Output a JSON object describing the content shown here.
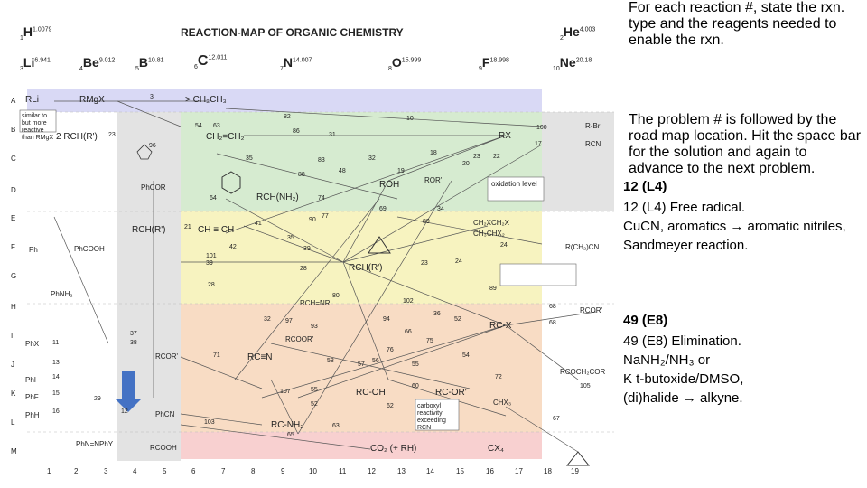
{
  "map": {
    "title": "REACTION-MAP OF ORGANIC CHEMISTRY",
    "elements": [
      {
        "num": "1",
        "sym": "H",
        "mass": "1.0079"
      },
      {
        "num": "2",
        "sym": "He",
        "mass": "4.003"
      },
      {
        "num": "3",
        "sym": "Li",
        "mass": "6.941"
      },
      {
        "num": "4",
        "sym": "Be",
        "mass": "9.012"
      },
      {
        "num": "5",
        "sym": "B",
        "mass": "10.81"
      },
      {
        "num": "6",
        "sym": "C",
        "mass": "12.011"
      },
      {
        "num": "7",
        "sym": "N",
        "mass": "14.007"
      },
      {
        "num": "8",
        "sym": "O",
        "mass": "15.999"
      },
      {
        "num": "9",
        "sym": "F",
        "mass": "18.998"
      },
      {
        "num": "10",
        "sym": "Ne",
        "mass": "20.18"
      }
    ],
    "row_letters": [
      "A",
      "B",
      "C",
      "D",
      "E",
      "F",
      "G",
      "H",
      "I",
      "J",
      "K",
      "L",
      "M"
    ],
    "col_numbers": [
      "1",
      "2",
      "3",
      "4",
      "5",
      "6",
      "7",
      "8",
      "9",
      "10",
      "11",
      "12",
      "13",
      "14",
      "15",
      "16",
      "17",
      "18",
      "19"
    ],
    "compounds": {
      "rli": "RLi",
      "rmgx": "RMgX",
      "ch3ch3": "> CH₃CH₃",
      "note_similar": "similar to but more reactive than RMgX",
      "ch2ch2": "CH₂=CH₂",
      "rx": "RX",
      "rbr": "R-Br",
      "rcn": "RCN",
      "rch_r": "2 RCH(R')",
      "roh": "ROH",
      "ror": "ROR'",
      "rchnh2": "RCH(NH₂)",
      "oxidation": "oxidation level",
      "chch": "CH ≡ CH",
      "rchoh": "RCH(R')",
      "ch2xch2x": "CH₂XCH₂X",
      "ch3chx2": "CH₃CHX₂",
      "rch2cn": "R(CH₂)CN",
      "rchnr": "RCH=NR",
      "rcoor": "RCOOR'",
      "rcocr": "RCOCR",
      "rcx": "RC-X",
      "rcor": "RCOR'",
      "rcn_triple": "RC≡N",
      "rcoh": "RC-OH",
      "rcor_ester": "RC-OR'",
      "rcnh2": "RC-NH₂",
      "rcooh": "RCOOH",
      "co2": "CO₂ (+ RH)",
      "cx4": "CX₄",
      "phcn": "PhCN",
      "phx": "PhX",
      "phi": "PhI",
      "phf": "PhF",
      "phh": "PhH",
      "ph_side": "Ph",
      "phcor": "PhCOR",
      "phcooh": "PhCOOH",
      "pnh2": "PhNH₂",
      "phnnphy": "PhN=NPhY",
      "chx3": "CHX₃",
      "rcooh2": "RCOCH₂COR",
      "carboxyl": "carboxyl reactivity exceeding RCN"
    },
    "arrow_numbers": [
      "1",
      "2",
      "3",
      "4",
      "5",
      "6",
      "7",
      "8",
      "9",
      "10",
      "11",
      "12",
      "13",
      "14",
      "15",
      "16",
      "17",
      "18",
      "19",
      "20",
      "21",
      "22",
      "23",
      "24",
      "25",
      "27",
      "28",
      "29",
      "30",
      "31",
      "32",
      "33",
      "34",
      "35",
      "36",
      "37",
      "38",
      "39",
      "40",
      "41",
      "42",
      "43",
      "44",
      "45",
      "46",
      "47",
      "48",
      "49",
      "50",
      "51",
      "52",
      "53",
      "54",
      "55",
      "56",
      "57",
      "58",
      "59",
      "60",
      "61",
      "62",
      "63",
      "64",
      "65",
      "66",
      "67",
      "68",
      "69",
      "70",
      "71",
      "72",
      "73",
      "74",
      "75",
      "76",
      "77",
      "78",
      "79",
      "80",
      "81",
      "82",
      "83",
      "84",
      "85",
      "86",
      "87",
      "88",
      "89",
      "90",
      "91",
      "92",
      "93",
      "94",
      "95",
      "96",
      "97",
      "98",
      "99",
      "100",
      "101",
      "102",
      "103",
      "104",
      "105",
      "106",
      "107",
      "108",
      "109"
    ]
  },
  "sidebar": {
    "title": "For each reaction #, state the rxn. type and the reagents needed to enable the rxn.",
    "instructions": "The problem # is followed by the road map location.  Hit the space bar for the solution and again to advance to the next problem.",
    "problems": [
      {
        "head": "12  (L4)",
        "line1": "12 (L4)  Free radical.",
        "line2a": "CuCN, aromatics ",
        "arrow": "→",
        "line2b": " aromatic nitriles, Sandmeyer reaction."
      },
      {
        "head": "49 (E8)",
        "line1": "49 (E8)  Elimination.",
        "line2": "NaNH₂/NH₃ or",
        "line3": "K t-butoxide/DMSO,",
        "line4a": "(di)halide ",
        "arrow": "→",
        "line4b": " alkyne."
      }
    ]
  },
  "colors": {
    "band_blue": "#d9d9f5",
    "band_green": "#d6ebd0",
    "band_yellow": "#f7f3c0",
    "band_orange": "#f8dcc4",
    "band_red": "#f8d0d0",
    "band_gray": "#e3e3e3",
    "blue_arrow": "#4472c4"
  }
}
